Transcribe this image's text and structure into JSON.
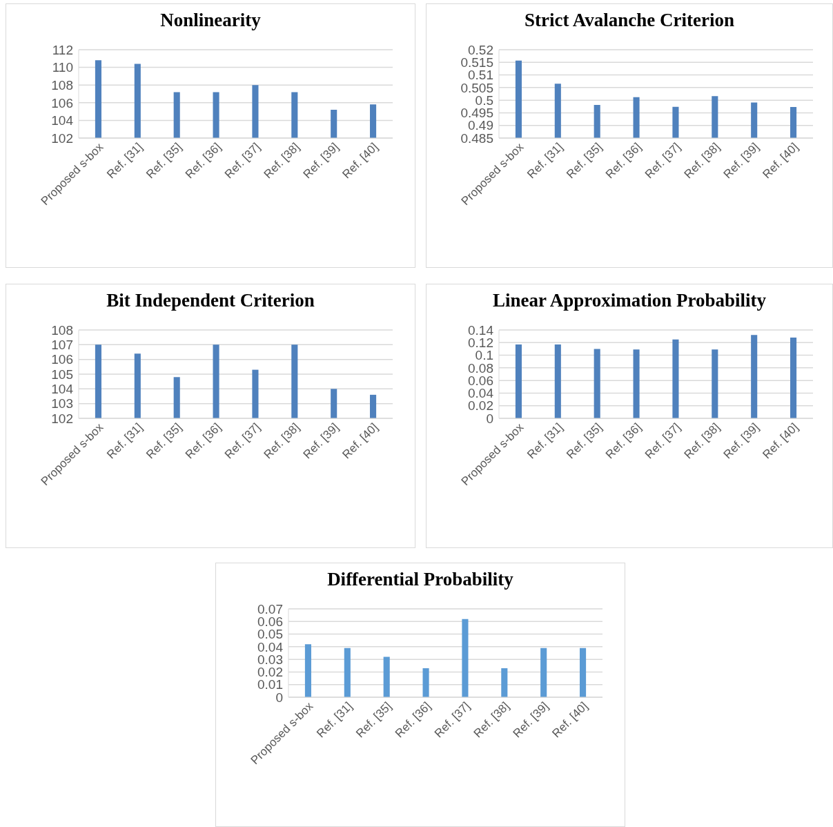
{
  "chart_data": [
    {
      "type": "bar",
      "title": "Nonlinearity",
      "categories": [
        "Proposed s-box",
        "Ref. [31]",
        "Ref. [35]",
        "Ref. [36]",
        "Ref. [37]",
        "Ref. [38]",
        "Ref. [39]",
        "Ref. [40]"
      ],
      "values": [
        110.8,
        110.4,
        107.2,
        107.2,
        108,
        107.2,
        105.2,
        105.8
      ],
      "color": "#4f81bd",
      "ylim": [
        102,
        112
      ],
      "yticks": [
        102,
        104,
        106,
        108,
        110,
        112
      ],
      "grid": "y"
    },
    {
      "type": "bar",
      "title": "Strict Avalanche Criterion",
      "categories": [
        "Proposed s-box",
        "Ref. [31]",
        "Ref. [35]",
        "Ref. [36]",
        "Ref. [37]",
        "Ref. [38]",
        "Ref. [39]",
        "Ref. [40]"
      ],
      "values": [
        0.5157,
        0.5065,
        0.4981,
        0.5012,
        0.4974,
        0.5016,
        0.4991,
        0.4973
      ],
      "color": "#4f81bd",
      "ylim": [
        0.485,
        0.52
      ],
      "yticks": [
        0.485,
        0.49,
        0.495,
        0.5,
        0.505,
        0.51,
        0.515,
        0.52
      ],
      "grid": "y"
    },
    {
      "type": "bar",
      "title": "Bit Independent Criterion",
      "categories": [
        "Proposed s-box",
        "Ref. [31]",
        "Ref. [35]",
        "Ref. [36]",
        "Ref. [37]",
        "Ref. [38]",
        "Ref. [39]",
        "Ref. [40]"
      ],
      "values": [
        107,
        106.4,
        104.8,
        107,
        105.3,
        107,
        104,
        103.6
      ],
      "color": "#4f81bd",
      "ylim": [
        102,
        108
      ],
      "yticks": [
        102,
        103,
        104,
        105,
        106,
        107,
        108
      ],
      "grid": "y"
    },
    {
      "type": "bar",
      "title": "Linear Approximation Probability",
      "categories": [
        "Proposed s-box",
        "Ref. [31]",
        "Ref. [35]",
        "Ref. [36]",
        "Ref. [37]",
        "Ref. [38]",
        "Ref. [39]",
        "Ref. [40]"
      ],
      "values": [
        0.117,
        0.117,
        0.11,
        0.109,
        0.125,
        0.109,
        0.132,
        0.128
      ],
      "color": "#4f81bd",
      "ylim": [
        0,
        0.14
      ],
      "yticks": [
        0,
        0.02,
        0.04,
        0.06,
        0.08,
        0.1,
        0.12,
        0.14
      ],
      "grid": "y"
    },
    {
      "type": "bar",
      "title": "Differential Probability",
      "categories": [
        "Proposed s-box",
        "Ref. [31]",
        "Ref. [35]",
        "Ref. [36]",
        "Ref. [37]",
        "Ref. [38]",
        "Ref. [39]",
        "Ref. [40]"
      ],
      "values": [
        0.042,
        0.039,
        0.032,
        0.023,
        0.062,
        0.023,
        0.039,
        0.039
      ],
      "color": "#5b9bd5",
      "ylim": [
        0,
        0.07
      ],
      "yticks": [
        0,
        0.01,
        0.02,
        0.03,
        0.04,
        0.05,
        0.06,
        0.07
      ],
      "grid": "y"
    }
  ]
}
